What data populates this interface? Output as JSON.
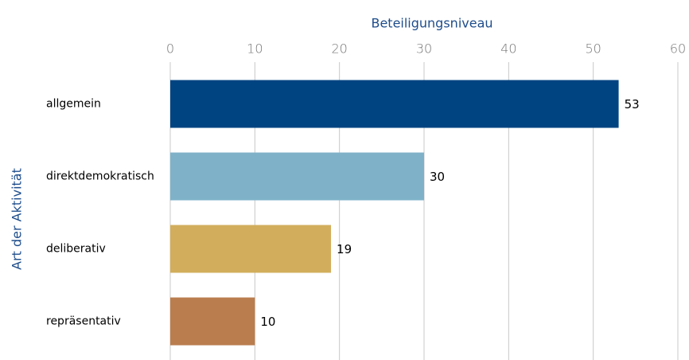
{
  "chart_data": {
    "type": "bar",
    "x_label": "Beteiligungsniveau",
    "y_label": "Art der Aktivität",
    "categories": [
      "allgemein",
      "direktdemokratisch",
      "deliberativ",
      "repräsentativ"
    ],
    "values": [
      53,
      30,
      19,
      10
    ],
    "colors": [
      "#004482",
      "#7fb2c9",
      "#d2ae5c",
      "#ba7d4e"
    ],
    "xlim": [
      0,
      60
    ],
    "xticks": [
      0,
      10,
      20,
      30,
      40,
      50,
      60
    ],
    "grid": true
  }
}
